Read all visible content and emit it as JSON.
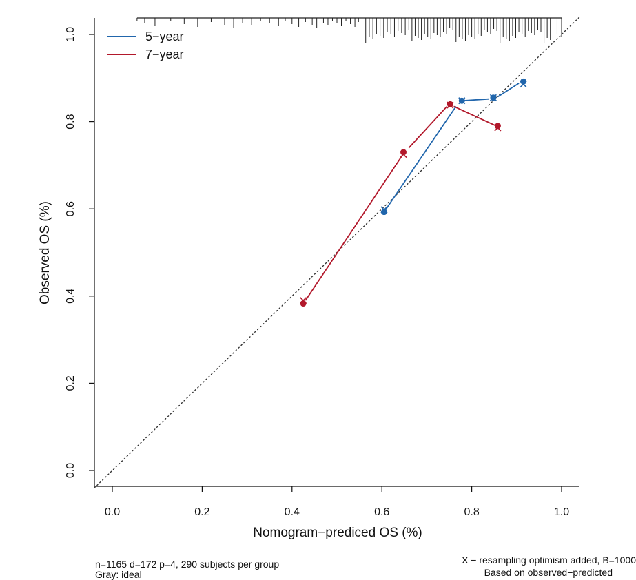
{
  "chart_data": {
    "type": "line",
    "xlabel": "Nomogram−prediced OS (%)",
    "ylabel": "Observed OS (%)",
    "xlim": [
      -0.04,
      1.04
    ],
    "ylim": [
      -0.04,
      1.04
    ],
    "xticks": [
      "0.0",
      "0.2",
      "0.4",
      "0.6",
      "0.8",
      "1.0"
    ],
    "yticks": [
      "0.0",
      "0.2",
      "0.4",
      "0.6",
      "0.8",
      "1.0"
    ],
    "reference_line": "diagonal dotted",
    "grid": false,
    "legend_position": "top-left",
    "series": [
      {
        "name": "5−year",
        "color": "#2166ac",
        "x": [
          0.605,
          0.778,
          0.848,
          0.915
        ],
        "y": [
          0.593,
          0.848,
          0.855,
          0.892
        ],
        "x_corrected": [
          0.605,
          0.778,
          0.848,
          0.915
        ],
        "y_corrected": [
          0.598,
          0.848,
          0.855,
          0.886
        ],
        "connect": [
          [
            0.605,
            0.593,
            0.765,
            0.835
          ],
          [
            0.778,
            0.848,
            0.838,
            0.852
          ],
          [
            0.858,
            0.857,
            0.905,
            0.888
          ]
        ]
      },
      {
        "name": "7−year",
        "color": "#b2182b",
        "x": [
          0.425,
          0.648,
          0.752,
          0.858
        ],
        "y": [
          0.383,
          0.73,
          0.84,
          0.79
        ],
        "x_corrected": [
          0.425,
          0.648,
          0.752,
          0.858
        ],
        "y_corrected": [
          0.39,
          0.725,
          0.838,
          0.786
        ],
        "connect": [
          [
            0.43,
            0.39,
            0.645,
            0.722
          ],
          [
            0.66,
            0.74,
            0.745,
            0.835
          ],
          [
            0.76,
            0.835,
            0.855,
            0.79
          ]
        ]
      }
    ],
    "rug_x": [
      0.055,
      0.072,
      0.095,
      0.13,
      0.16,
      0.19,
      0.22,
      0.25,
      0.27,
      0.29,
      0.31,
      0.33,
      0.35,
      0.37,
      0.385,
      0.4,
      0.415,
      0.43,
      0.445,
      0.455,
      0.47,
      0.48,
      0.49,
      0.5,
      0.51,
      0.52,
      0.53,
      0.54,
      0.548,
      0.556,
      0.564,
      0.572,
      0.58,
      0.588,
      0.596,
      0.604,
      0.612,
      0.62,
      0.628,
      0.636,
      0.644,
      0.652,
      0.66,
      0.667,
      0.674,
      0.681,
      0.688,
      0.695,
      0.702,
      0.709,
      0.716,
      0.723,
      0.73,
      0.737,
      0.744,
      0.751,
      0.758,
      0.765,
      0.772,
      0.779,
      0.786,
      0.793,
      0.8,
      0.807,
      0.814,
      0.821,
      0.828,
      0.835,
      0.842,
      0.849,
      0.856,
      0.863,
      0.87,
      0.877,
      0.884,
      0.891,
      0.898,
      0.905,
      0.912,
      0.919,
      0.926,
      0.933,
      0.94,
      0.947,
      0.954,
      0.961,
      0.968,
      0.975,
      0.99,
      1.0
    ]
  },
  "notes": {
    "left_line1": "n=1165 d=172 p=4, 290 subjects per group",
    "left_line2": "Gray: ideal",
    "right_line1": "X − resampling optimism added, B=1000",
    "right_line2": "Based on observed−predicted"
  }
}
